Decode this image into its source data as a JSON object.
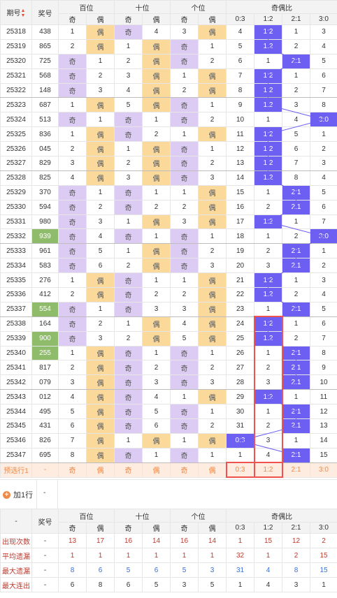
{
  "header": {
    "period_label": "期号",
    "prize_label": "奖号",
    "groups": [
      "百位",
      "十位",
      "个位",
      "奇偶比"
    ],
    "sub": [
      "奇",
      "偶",
      "奇",
      "偶",
      "奇",
      "偶",
      "0:3",
      "1:2",
      "2:1",
      "3:0"
    ]
  },
  "rows": [
    {
      "period": "25318",
      "prize": "438",
      "hl": false,
      "b": [
        1,
        "偶"
      ],
      "s": [
        "奇",
        4
      ],
      "g": [
        3,
        "偶"
      ],
      "r": [
        4,
        "1:2",
        1,
        3
      ]
    },
    {
      "period": "25319",
      "prize": "865",
      "hl": false,
      "b": [
        2,
        "偶"
      ],
      "s": [
        1,
        "偶"
      ],
      "g": [
        "奇",
        1
      ],
      "r": [
        5,
        "1:2",
        2,
        4
      ]
    },
    {
      "period": "25320",
      "prize": "725",
      "hl": false,
      "b": [
        "奇",
        1
      ],
      "s": [
        2,
        "偶"
      ],
      "g": [
        "奇",
        2
      ],
      "r": [
        6,
        1,
        "2:1",
        5
      ]
    },
    {
      "period": "25321",
      "prize": "568",
      "hl": false,
      "b": [
        "奇",
        2
      ],
      "s": [
        3,
        "偶"
      ],
      "g": [
        1,
        "偶"
      ],
      "r": [
        7,
        "1:2",
        1,
        6
      ]
    },
    {
      "period": "25322",
      "prize": "148",
      "hl": false,
      "b": [
        "奇",
        3
      ],
      "s": [
        4,
        "偶"
      ],
      "g": [
        2,
        "偶"
      ],
      "r": [
        8,
        "1:2",
        2,
        7
      ]
    },
    {
      "period": "25323",
      "prize": "687",
      "hl": false,
      "b": [
        1,
        "偶"
      ],
      "s": [
        5,
        "偶"
      ],
      "g": [
        "奇",
        1
      ],
      "r": [
        9,
        "1:2",
        3,
        8
      ]
    },
    {
      "period": "25324",
      "prize": "513",
      "hl": false,
      "b": [
        "奇",
        1
      ],
      "s": [
        "奇",
        1
      ],
      "g": [
        "奇",
        2
      ],
      "r": [
        10,
        1,
        4,
        "3:0"
      ]
    },
    {
      "period": "25325",
      "prize": "836",
      "hl": false,
      "b": [
        1,
        "偶"
      ],
      "s": [
        "奇",
        2
      ],
      "g": [
        1,
        "偶"
      ],
      "r": [
        11,
        "1:2",
        5,
        1
      ]
    },
    {
      "period": "25326",
      "prize": "045",
      "hl": false,
      "b": [
        2,
        "偶"
      ],
      "s": [
        1,
        "偶"
      ],
      "g": [
        "奇",
        1
      ],
      "r": [
        12,
        "1:2",
        6,
        2
      ]
    },
    {
      "period": "25327",
      "prize": "829",
      "hl": false,
      "b": [
        3,
        "偶"
      ],
      "s": [
        2,
        "偶"
      ],
      "g": [
        "奇",
        2
      ],
      "r": [
        13,
        "1:2",
        7,
        3
      ]
    },
    {
      "period": "25328",
      "prize": "825",
      "hl": false,
      "b": [
        4,
        "偶"
      ],
      "s": [
        3,
        "偶"
      ],
      "g": [
        "奇",
        3
      ],
      "r": [
        14,
        "1:2",
        8,
        4
      ]
    },
    {
      "period": "25329",
      "prize": "370",
      "hl": false,
      "b": [
        "奇",
        1
      ],
      "s": [
        "奇",
        1
      ],
      "g": [
        1,
        "偶"
      ],
      "r": [
        15,
        1,
        "2:1",
        5
      ]
    },
    {
      "period": "25330",
      "prize": "594",
      "hl": false,
      "b": [
        "奇",
        2
      ],
      "s": [
        "奇",
        2
      ],
      "g": [
        2,
        "偶"
      ],
      "r": [
        16,
        2,
        "2:1",
        6
      ]
    },
    {
      "period": "25331",
      "prize": "980",
      "hl": false,
      "b": [
        "奇",
        3
      ],
      "s": [
        1,
        "偶"
      ],
      "g": [
        3,
        "偶"
      ],
      "r": [
        17,
        "1:2",
        1,
        7
      ]
    },
    {
      "period": "25332",
      "prize": "939",
      "hl": true,
      "b": [
        "奇",
        4
      ],
      "s": [
        "奇",
        1
      ],
      "g": [
        "奇",
        1
      ],
      "r": [
        18,
        1,
        2,
        "3:0"
      ]
    },
    {
      "period": "25333",
      "prize": "961",
      "hl": false,
      "b": [
        "奇",
        5
      ],
      "s": [
        1,
        "偶"
      ],
      "g": [
        "奇",
        2
      ],
      "r": [
        19,
        2,
        "2:1",
        1
      ]
    },
    {
      "period": "25334",
      "prize": "583",
      "hl": false,
      "b": [
        "奇",
        6
      ],
      "s": [
        2,
        "偶"
      ],
      "g": [
        "奇",
        3
      ],
      "r": [
        20,
        3,
        "2:1",
        2
      ]
    },
    {
      "period": "25335",
      "prize": "276",
      "hl": false,
      "b": [
        1,
        "偶"
      ],
      "s": [
        "奇",
        1
      ],
      "g": [
        1,
        "偶"
      ],
      "r": [
        21,
        "1:2",
        1,
        3
      ]
    },
    {
      "period": "25336",
      "prize": "412",
      "hl": false,
      "b": [
        2,
        "偶"
      ],
      "s": [
        "奇",
        2
      ],
      "g": [
        2,
        "偶"
      ],
      "r": [
        22,
        "1:2",
        2,
        4
      ]
    },
    {
      "period": "25337",
      "prize": "554",
      "hl": true,
      "b": [
        "奇",
        1
      ],
      "s": [
        "奇",
        3
      ],
      "g": [
        3,
        "偶"
      ],
      "r": [
        23,
        1,
        "2:1",
        5
      ]
    },
    {
      "period": "25338",
      "prize": "164",
      "hl": false,
      "b": [
        "奇",
        2
      ],
      "s": [
        1,
        "偶"
      ],
      "g": [
        4,
        "偶"
      ],
      "r": [
        24,
        "1:2",
        1,
        6
      ]
    },
    {
      "period": "25339",
      "prize": "900",
      "hl": true,
      "b": [
        "奇",
        3
      ],
      "s": [
        2,
        "偶"
      ],
      "g": [
        5,
        "偶"
      ],
      "r": [
        25,
        "1:2",
        2,
        7
      ]
    },
    {
      "period": "25340",
      "prize": "255",
      "hl": true,
      "b": [
        1,
        "偶"
      ],
      "s": [
        "奇",
        1
      ],
      "g": [
        "奇",
        1
      ],
      "r": [
        26,
        1,
        "2:1",
        8
      ]
    },
    {
      "period": "25341",
      "prize": "817",
      "hl": false,
      "b": [
        2,
        "偶"
      ],
      "s": [
        "奇",
        2
      ],
      "g": [
        "奇",
        2
      ],
      "r": [
        27,
        2,
        "2:1",
        9
      ]
    },
    {
      "period": "25342",
      "prize": "079",
      "hl": false,
      "b": [
        3,
        "偶"
      ],
      "s": [
        "奇",
        3
      ],
      "g": [
        "奇",
        3
      ],
      "r": [
        28,
        3,
        "2:1",
        10
      ]
    },
    {
      "period": "25343",
      "prize": "012",
      "hl": false,
      "b": [
        4,
        "偶"
      ],
      "s": [
        "奇",
        4
      ],
      "g": [
        1,
        "偶"
      ],
      "r": [
        29,
        "1:2",
        1,
        11
      ]
    },
    {
      "period": "25344",
      "prize": "495",
      "hl": false,
      "b": [
        5,
        "偶"
      ],
      "s": [
        "奇",
        5
      ],
      "g": [
        "奇",
        1
      ],
      "r": [
        30,
        1,
        "2:1",
        12
      ]
    },
    {
      "period": "25345",
      "prize": "431",
      "hl": false,
      "b": [
        6,
        "偶"
      ],
      "s": [
        "奇",
        6
      ],
      "g": [
        "奇",
        2
      ],
      "r": [
        31,
        2,
        "2:1",
        13
      ]
    },
    {
      "period": "25346",
      "prize": "826",
      "hl": false,
      "b": [
        7,
        "偶"
      ],
      "s": [
        1,
        "偶"
      ],
      "g": [
        1,
        "偶"
      ],
      "r": [
        "0:3",
        3,
        1,
        14
      ]
    },
    {
      "period": "25347",
      "prize": "695",
      "hl": false,
      "b": [
        8,
        "偶"
      ],
      "s": [
        "奇",
        1
      ],
      "g": [
        "奇",
        1
      ],
      "r": [
        1,
        4,
        "2:1",
        15
      ]
    }
  ],
  "preselect": {
    "label": "预选行1",
    "prize": "-",
    "cells": [
      "奇",
      "偶",
      "奇",
      "偶",
      "奇",
      "偶",
      "0:3",
      "1:2",
      "2:1",
      "3:0"
    ]
  },
  "addrow": {
    "label": "加1行",
    "dash": "-"
  },
  "stats": {
    "dash": "-",
    "prize_label": "奖号",
    "groups": [
      "百位",
      "十位",
      "个位",
      "奇偶比"
    ],
    "sub": [
      "奇",
      "偶",
      "奇",
      "偶",
      "奇",
      "偶",
      "0:3",
      "1:2",
      "2:1",
      "3:0"
    ],
    "rows": [
      {
        "label": "出现次数",
        "cls": "st-red",
        "vals": [
          13,
          17,
          16,
          14,
          16,
          14,
          1,
          15,
          12,
          2
        ]
      },
      {
        "label": "平均遗漏",
        "cls": "st-red",
        "vals": [
          1,
          1,
          1,
          1,
          1,
          1,
          32,
          1,
          2,
          15
        ]
      },
      {
        "label": "最大遗漏",
        "cls": "st-blue",
        "vals": [
          8,
          6,
          5,
          6,
          5,
          3,
          31,
          4,
          8,
          15
        ]
      },
      {
        "label": "最大连出",
        "cls": "st-dark",
        "vals": [
          6,
          8,
          6,
          5,
          3,
          5,
          1,
          4,
          3,
          1
        ]
      }
    ]
  },
  "colors": {
    "odd_bg": "#dccbf3",
    "even_bg": "#fbd99a",
    "ratio_bg": "#6d5ff2",
    "prize_hl": "#8fbc6b",
    "redbox": "#ef5350"
  }
}
